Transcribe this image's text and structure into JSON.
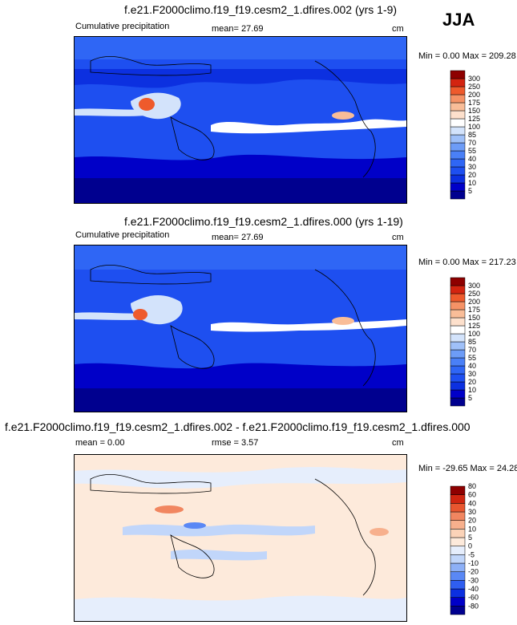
{
  "season": "JJA",
  "chart_data": [
    {
      "type": "heatmap",
      "title": "f.e21.F2000climo.f19_f19.cesm2_1.dfires.002 (yrs 1-9)",
      "left_label": "Cumulative precipitation",
      "stat_text": "mean=  27.69",
      "units": "cm",
      "min_max_text": "Min =   0.00 Max = 209.28",
      "stats": {
        "mean": 27.69,
        "min": 0.0,
        "max": 209.28
      },
      "levels": [
        5,
        10,
        20,
        30,
        40,
        55,
        70,
        85,
        100,
        125,
        150,
        175,
        200,
        250,
        300
      ],
      "level_labels": [
        "5",
        "10",
        "20",
        "30",
        "40",
        "55",
        "70",
        "85",
        "100",
        "125",
        "150",
        "175",
        "200",
        "250",
        "300"
      ],
      "colors": [
        "#00008f",
        "#0000c8",
        "#0c30e0",
        "#1e4ff0",
        "#2f66f5",
        "#4a80f7",
        "#6d9cf7",
        "#9fc0f8",
        "#d3e3fb",
        "#ffffff",
        "#fde0cc",
        "#f9bd98",
        "#f59266",
        "#ee5a2c",
        "#d32410",
        "#8e0000"
      ]
    },
    {
      "type": "heatmap",
      "title": "f.e21.F2000climo.f19_f19.cesm2_1.dfires.000 (yrs 1-19)",
      "left_label": "Cumulative precipitation",
      "stat_text": "mean=  27.69",
      "units": "cm",
      "min_max_text": "Min =   0.00 Max = 217.23",
      "stats": {
        "mean": 27.69,
        "min": 0.0,
        "max": 217.23
      },
      "levels": [
        5,
        10,
        20,
        30,
        40,
        55,
        70,
        85,
        100,
        125,
        150,
        175,
        200,
        250,
        300
      ],
      "level_labels": [
        "5",
        "10",
        "20",
        "30",
        "40",
        "55",
        "70",
        "85",
        "100",
        "125",
        "150",
        "175",
        "200",
        "250",
        "300"
      ],
      "colors": [
        "#00008f",
        "#0000c8",
        "#0c30e0",
        "#1e4ff0",
        "#2f66f5",
        "#4a80f7",
        "#6d9cf7",
        "#9fc0f8",
        "#d3e3fb",
        "#ffffff",
        "#fde0cc",
        "#f9bd98",
        "#f59266",
        "#ee5a2c",
        "#d32410",
        "#8e0000"
      ]
    },
    {
      "type": "heatmap",
      "title": "f.e21.F2000climo.f19_f19.cesm2_1.dfires.002 - f.e21.F2000climo.f19_f19.cesm2_1.dfires.000",
      "left_label": "mean =   0.00",
      "stat_text": "rmse =   3.57",
      "units": "cm",
      "min_max_text": "Min = -29.65 Max =  24.28",
      "stats": {
        "mean": 0.0,
        "rmse": 3.57,
        "min": -29.65,
        "max": 24.28
      },
      "levels": [
        -80,
        -60,
        -40,
        -30,
        -20,
        -10,
        -5,
        0,
        5,
        10,
        20,
        30,
        40,
        60,
        80
      ],
      "level_labels": [
        "-80",
        "-60",
        "-40",
        "-30",
        "-20",
        "-10",
        "-5",
        "0",
        "5",
        "10",
        "20",
        "30",
        "40",
        "60",
        "80"
      ],
      "colors": [
        "#00008f",
        "#0000c8",
        "#0c30e0",
        "#2f5ef0",
        "#5a88f5",
        "#8db0f7",
        "#c1d6fa",
        "#e6eefc",
        "#fdeadb",
        "#fbd3b8",
        "#f7b08d",
        "#f18660",
        "#e8562f",
        "#cf2510",
        "#8e0000"
      ]
    }
  ]
}
